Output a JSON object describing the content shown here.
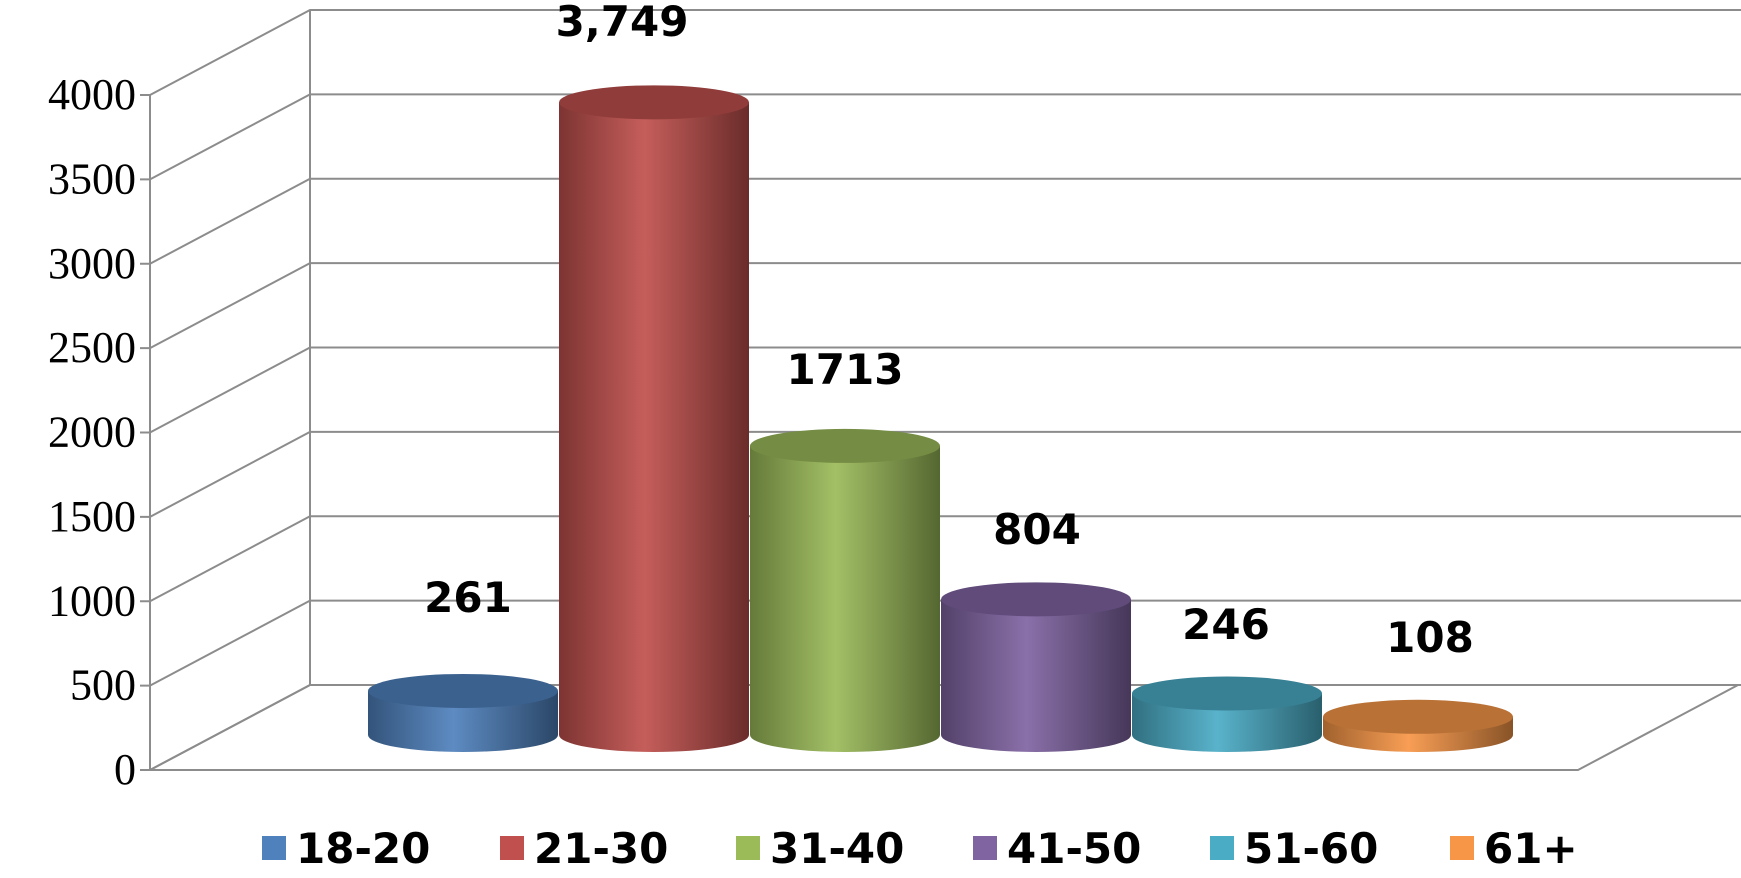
{
  "chart_data": {
    "type": "bar",
    "style": "3d-cylinder",
    "categories": [
      "18-20",
      "21-30",
      "31-40",
      "41-50",
      "51-60",
      "61+"
    ],
    "values": [
      261,
      3749,
      1713,
      804,
      246,
      108
    ],
    "data_labels": [
      "261",
      "3,749",
      "1713",
      "804",
      "246",
      "108"
    ],
    "colors": [
      "#4f81bd",
      "#c0504d",
      "#9bbb59",
      "#8064a2",
      "#4bacc6",
      "#f79646"
    ],
    "yticks": [
      "0",
      "500",
      "1000",
      "1500",
      "2000",
      "2500",
      "3000",
      "3500",
      "4000"
    ],
    "ylim": [
      0,
      4000
    ],
    "grid": true,
    "legend": "bottom"
  }
}
